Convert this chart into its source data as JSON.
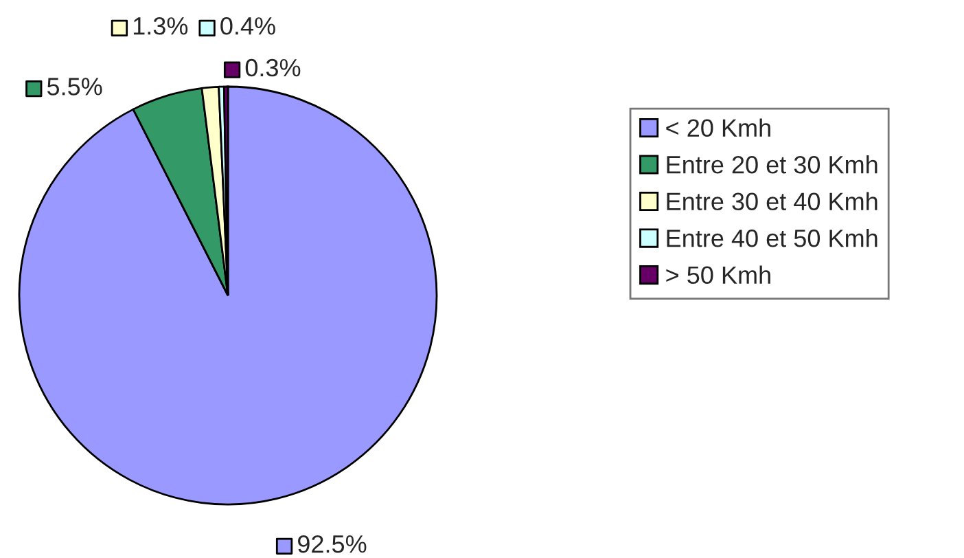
{
  "chart_data": {
    "type": "pie",
    "categories": [
      "< 20 Kmh",
      "Entre 20 et 30 Kmh",
      "Entre 30 et 40 Kmh",
      "Entre 40 et 50 Kmh",
      "> 50 Kmh"
    ],
    "values": [
      92.5,
      5.5,
      1.3,
      0.4,
      0.3
    ],
    "value_labels": [
      "92.5%",
      "5.5%",
      "1.3%",
      "0.4%",
      "0.3%"
    ],
    "colors": [
      "#9999ff",
      "#339966",
      "#ffffcc",
      "#ccffff",
      "#660066"
    ],
    "legend": "right"
  }
}
